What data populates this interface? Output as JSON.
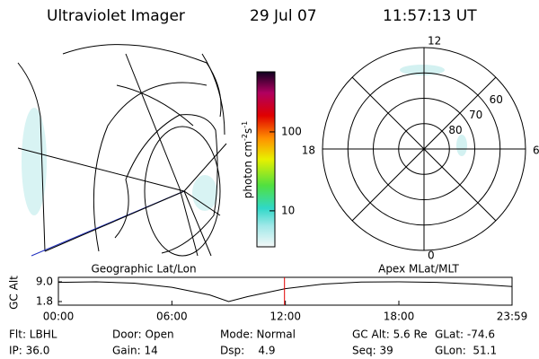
{
  "header": {
    "title": "Ultraviolet Imager",
    "date": "29 Jul 07",
    "time": "11:57:13 UT"
  },
  "colorbar": {
    "unit": [
      "photon cm",
      "-2",
      "s",
      "-1"
    ],
    "scale": "log",
    "lim": [
      3.5,
      577
    ],
    "ticks": [
      10,
      100
    ]
  },
  "polar": {
    "mlt_labels": [
      "12",
      "18",
      "6",
      "0"
    ],
    "lat_labels": [
      60,
      70,
      80
    ],
    "lim": [
      50,
      90
    ]
  },
  "map_labels": {
    "left": "Geographic Lat/Lon",
    "right": "Apex MLat/MLT"
  },
  "chart_data": {
    "type": "line",
    "ylabel": "GC Alt",
    "x": [
      0,
      120,
      240,
      360,
      480,
      540,
      600,
      720,
      840,
      960,
      1080,
      1200,
      1320,
      1439
    ],
    "series": [
      {
        "name": "GC Alt",
        "color": "#000000",
        "values": [
          8.8,
          9.0,
          8.5,
          7.0,
          4.2,
          1.8,
          3.6,
          6.5,
          8.2,
          8.9,
          9.0,
          8.8,
          8.2,
          7.3
        ]
      }
    ],
    "xlim": [
      0,
      1439
    ],
    "xticks": [
      {
        "value": 0,
        "label": "00:00"
      },
      {
        "value": 360,
        "label": "06:00"
      },
      {
        "value": 720,
        "label": "12:00"
      },
      {
        "value": 1080,
        "label": "18:00"
      },
      {
        "value": 1439,
        "label": "23:59"
      }
    ],
    "ylim": [
      1.8,
      9.0
    ],
    "yticks": [
      {
        "value": 9.0,
        "label": "9.0"
      },
      {
        "value": 1.8,
        "label": "1.8"
      }
    ],
    "marker": {
      "value": 717.2,
      "color": "#e00000"
    }
  },
  "footer": {
    "rows": [
      [
        "Flt: LBHL",
        "Door: Open",
        "Mode: Normal",
        "GC Alt: 5.6 Re",
        "GLat: -74.6"
      ],
      [
        "IP: 36.0",
        "Gain: 14",
        "Dsp:    4.9",
        "Seq: 39",
        "GLon:  51.1"
      ]
    ]
  }
}
